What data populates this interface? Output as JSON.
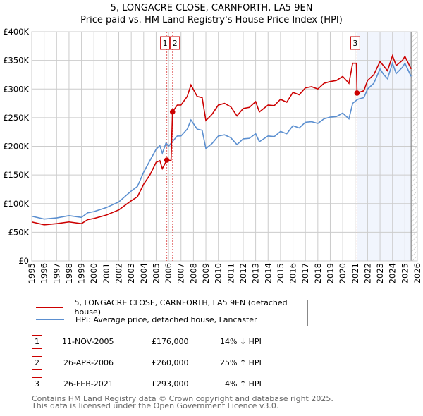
{
  "chart_data": {
    "type": "line",
    "title": "5, LONGACRE CLOSE, CARNFORTH, LA5 9EN",
    "subtitle": "Price paid vs. HM Land Registry's House Price Index (HPI)",
    "xlim": [
      1995,
      2026
    ],
    "ylim": [
      0,
      400000
    ],
    "y_ticks": [
      {
        "v": 0,
        "label": "£0"
      },
      {
        "v": 50000,
        "label": "£50K"
      },
      {
        "v": 100000,
        "label": "£100K"
      },
      {
        "v": 150000,
        "label": "£150K"
      },
      {
        "v": 200000,
        "label": "£200K"
      },
      {
        "v": 250000,
        "label": "£250K"
      },
      {
        "v": 300000,
        "label": "£300K"
      },
      {
        "v": 350000,
        "label": "£350K"
      },
      {
        "v": 400000,
        "label": "£400K"
      }
    ],
    "x_ticks": [
      "1995",
      "1996",
      "1997",
      "1998",
      "1999",
      "2000",
      "2001",
      "2002",
      "2003",
      "2004",
      "2005",
      "2006",
      "2007",
      "2008",
      "2009",
      "2010",
      "2011",
      "2012",
      "2013",
      "2014",
      "2015",
      "2016",
      "2017",
      "2018",
      "2019",
      "2020",
      "2021",
      "2022",
      "2023",
      "2024",
      "2025",
      "2026"
    ],
    "grid": true,
    "shaded_from": 2021.15,
    "data_end": 2025.5,
    "series": [
      {
        "name": "5, LONGACRE CLOSE, CARNFORTH, LA5 9EN (detached house)",
        "color": "#cc0000",
        "x": [
          1995,
          1996,
          1997,
          1998,
          1999,
          1999.5,
          2000,
          2001,
          2002,
          2003,
          2003.5,
          2004,
          2004.5,
          2005,
          2005.3,
          2005.5,
          2005.86,
          2006.2,
          2006.32,
          2006.7,
          2007,
          2007.5,
          2007.8,
          2008.3,
          2008.7,
          2009,
          2009.5,
          2010,
          2010.5,
          2011,
          2011.5,
          2012,
          2012.5,
          2013,
          2013.3,
          2014,
          2014.5,
          2015,
          2015.5,
          2016,
          2016.5,
          2017,
          2017.5,
          2018,
          2018.5,
          2019,
          2019.5,
          2020,
          2020.5,
          2020.8,
          2021.1,
          2021.15,
          2021.7,
          2022,
          2022.5,
          2023,
          2023.3,
          2023.6,
          2024,
          2024.3,
          2024.8,
          2025,
          2025.5
        ],
        "y": [
          68000,
          63000,
          65000,
          68000,
          65000,
          72000,
          74000,
          80000,
          89000,
          105000,
          112000,
          134000,
          150000,
          172000,
          175000,
          161000,
          176000,
          175000,
          260000,
          272000,
          272000,
          287000,
          307000,
          287000,
          285000,
          245000,
          256000,
          272000,
          275000,
          269000,
          253000,
          266000,
          268000,
          278000,
          260000,
          272000,
          271000,
          282000,
          277000,
          294000,
          290000,
          302000,
          304000,
          300000,
          310000,
          313000,
          315000,
          322000,
          310000,
          345000,
          345000,
          293000,
          297000,
          315000,
          325000,
          348000,
          340000,
          332000,
          358000,
          341000,
          350000,
          357000,
          335000
        ]
      },
      {
        "name": "HPI: Average price, detached house, Lancaster",
        "color": "#5b8fd0",
        "x": [
          1995,
          1996,
          1997,
          1998,
          1999,
          1999.5,
          2000,
          2001,
          2002,
          2003,
          2003.5,
          2004,
          2004.5,
          2005,
          2005.3,
          2005.5,
          2005.8,
          2006,
          2006.3,
          2006.7,
          2007,
          2007.5,
          2007.8,
          2008.3,
          2008.7,
          2009,
          2009.5,
          2010,
          2010.5,
          2011,
          2011.5,
          2012,
          2012.5,
          2013,
          2013.3,
          2014,
          2014.5,
          2015,
          2015.5,
          2016,
          2016.5,
          2017,
          2017.5,
          2018,
          2018.5,
          2019,
          2019.5,
          2020,
          2020.5,
          2020.8,
          2021.2,
          2021.7,
          2022,
          2022.5,
          2023,
          2023.3,
          2023.6,
          2024,
          2024.3,
          2024.8,
          2025,
          2025.5
        ],
        "y": [
          78000,
          73000,
          75000,
          79000,
          76000,
          84000,
          86000,
          93000,
          103000,
          122000,
          130000,
          155000,
          175000,
          195000,
          201000,
          188000,
          206000,
          200000,
          208000,
          218000,
          218000,
          230000,
          246000,
          230000,
          228000,
          196000,
          205000,
          218000,
          220000,
          215000,
          203000,
          213000,
          214000,
          222000,
          208000,
          218000,
          217000,
          226000,
          222000,
          236000,
          232000,
          242000,
          243000,
          240000,
          248000,
          251000,
          252000,
          258000,
          248000,
          275000,
          282000,
          285000,
          300000,
          310000,
          335000,
          325000,
          318000,
          345000,
          327000,
          338000,
          345000,
          322000
        ]
      }
    ],
    "sales": [
      {
        "id": "1",
        "x": 2005.86,
        "price": 176000,
        "date": "11-NOV-2005",
        "price_label": "£176,000",
        "hpi": "14% ↓ HPI"
      },
      {
        "id": "2",
        "x": 2006.32,
        "price": 260000,
        "date": "26-APR-2006",
        "price_label": "£260,000",
        "hpi": "25% ↑ HPI"
      },
      {
        "id": "3",
        "x": 2021.15,
        "price": 293000,
        "date": "26-FEB-2021",
        "price_label": "£293,000",
        "hpi": "4% ↑ HPI"
      }
    ]
  },
  "footer": {
    "line1": "Contains HM Land Registry data © Crown copyright and database right 2025.",
    "line2": "This data is licensed under the Open Government Licence v3.0."
  }
}
